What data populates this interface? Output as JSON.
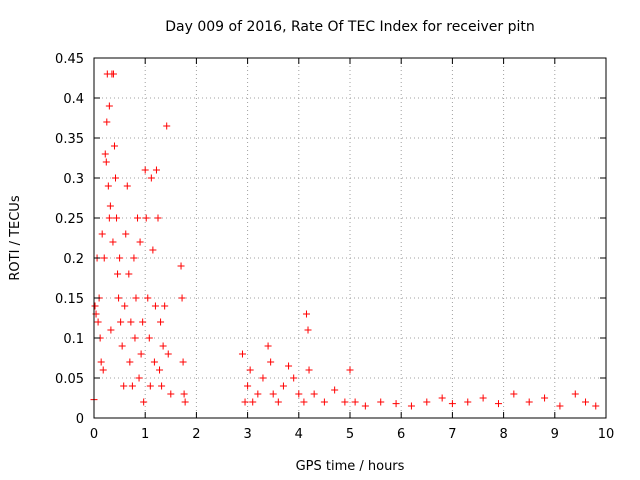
{
  "chart_data": {
    "type": "scatter",
    "title": "Day 009 of 2016, Rate Of TEC Index for receiver pitn",
    "xlabel": "GPS time / hours",
    "ylabel": "ROTI / TECUs",
    "xlim": [
      0,
      10
    ],
    "ylim": [
      0,
      0.45
    ],
    "grid": true,
    "marker": "+",
    "color": "#ff0000",
    "xticks": [
      0,
      1,
      2,
      3,
      4,
      5,
      6,
      7,
      8,
      9,
      10
    ],
    "xtick_labels": [
      "0",
      "1",
      "2",
      "3",
      "4",
      "5",
      "6",
      "7",
      "8",
      "9",
      "10"
    ],
    "yticks": [
      0,
      0.05,
      0.1,
      0.15,
      0.2,
      0.25,
      0.3,
      0.35,
      0.4,
      0.45
    ],
    "ytick_labels": [
      "0",
      "0.05",
      "0.1",
      "0.15",
      "0.2",
      "0.25",
      "0.3",
      "0.35",
      "0.4",
      "0.45"
    ],
    "series": [
      {
        "name": "ROTI",
        "points": [
          [
            0.0,
            0.023
          ],
          [
            0.02,
            0.14
          ],
          [
            0.04,
            0.13
          ],
          [
            0.06,
            0.2
          ],
          [
            0.08,
            0.12
          ],
          [
            0.1,
            0.15
          ],
          [
            0.12,
            0.1
          ],
          [
            0.14,
            0.07
          ],
          [
            0.16,
            0.23
          ],
          [
            0.18,
            0.06
          ],
          [
            0.2,
            0.2
          ],
          [
            0.22,
            0.33
          ],
          [
            0.24,
            0.32
          ],
          [
            0.25,
            0.37
          ],
          [
            0.26,
            0.43
          ],
          [
            0.28,
            0.29
          ],
          [
            0.3,
            0.25
          ],
          [
            0.3,
            0.39
          ],
          [
            0.32,
            0.265
          ],
          [
            0.33,
            0.11
          ],
          [
            0.35,
            0.43
          ],
          [
            0.37,
            0.22
          ],
          [
            0.38,
            0.43
          ],
          [
            0.4,
            0.34
          ],
          [
            0.42,
            0.3
          ],
          [
            0.44,
            0.25
          ],
          [
            0.46,
            0.18
          ],
          [
            0.48,
            0.15
          ],
          [
            0.5,
            0.2
          ],
          [
            0.52,
            0.12
          ],
          [
            0.55,
            0.09
          ],
          [
            0.58,
            0.04
          ],
          [
            0.6,
            0.14
          ],
          [
            0.62,
            0.23
          ],
          [
            0.65,
            0.29
          ],
          [
            0.68,
            0.18
          ],
          [
            0.7,
            0.07
          ],
          [
            0.72,
            0.12
          ],
          [
            0.75,
            0.04
          ],
          [
            0.78,
            0.2
          ],
          [
            0.8,
            0.1
          ],
          [
            0.82,
            0.15
          ],
          [
            0.85,
            0.25
          ],
          [
            0.88,
            0.05
          ],
          [
            0.9,
            0.22
          ],
          [
            0.92,
            0.08
          ],
          [
            0.95,
            0.12
          ],
          [
            0.97,
            0.02
          ],
          [
            1.0,
            0.31
          ],
          [
            1.02,
            0.25
          ],
          [
            1.05,
            0.15
          ],
          [
            1.08,
            0.1
          ],
          [
            1.1,
            0.04
          ],
          [
            1.12,
            0.3
          ],
          [
            1.15,
            0.21
          ],
          [
            1.18,
            0.07
          ],
          [
            1.2,
            0.14
          ],
          [
            1.22,
            0.31
          ],
          [
            1.25,
            0.25
          ],
          [
            1.28,
            0.06
          ],
          [
            1.3,
            0.12
          ],
          [
            1.32,
            0.04
          ],
          [
            1.35,
            0.09
          ],
          [
            1.38,
            0.14
          ],
          [
            1.42,
            0.365
          ],
          [
            1.45,
            0.08
          ],
          [
            1.5,
            0.03
          ],
          [
            1.7,
            0.19
          ],
          [
            1.72,
            0.15
          ],
          [
            1.74,
            0.07
          ],
          [
            1.76,
            0.03
          ],
          [
            1.78,
            0.02
          ],
          [
            2.9,
            0.08
          ],
          [
            2.95,
            0.02
          ],
          [
            3.0,
            0.04
          ],
          [
            3.05,
            0.06
          ],
          [
            3.1,
            0.02
          ],
          [
            3.2,
            0.03
          ],
          [
            3.3,
            0.05
          ],
          [
            3.4,
            0.09
          ],
          [
            3.45,
            0.07
          ],
          [
            3.5,
            0.03
          ],
          [
            3.6,
            0.02
          ],
          [
            3.7,
            0.04
          ],
          [
            3.8,
            0.065
          ],
          [
            3.9,
            0.05
          ],
          [
            4.0,
            0.03
          ],
          [
            4.1,
            0.02
          ],
          [
            4.15,
            0.13
          ],
          [
            4.18,
            0.11
          ],
          [
            4.2,
            0.06
          ],
          [
            4.3,
            0.03
          ],
          [
            4.5,
            0.02
          ],
          [
            4.7,
            0.035
          ],
          [
            4.9,
            0.02
          ],
          [
            5.0,
            0.06
          ],
          [
            5.1,
            0.02
          ],
          [
            5.3,
            0.015
          ],
          [
            5.6,
            0.02
          ],
          [
            5.9,
            0.018
          ],
          [
            6.2,
            0.015
          ],
          [
            6.5,
            0.02
          ],
          [
            6.8,
            0.025
          ],
          [
            7.0,
            0.018
          ],
          [
            7.3,
            0.02
          ],
          [
            7.6,
            0.025
          ],
          [
            7.9,
            0.018
          ],
          [
            8.2,
            0.03
          ],
          [
            8.5,
            0.02
          ],
          [
            8.8,
            0.025
          ],
          [
            9.1,
            0.015
          ],
          [
            9.4,
            0.03
          ],
          [
            9.6,
            0.02
          ],
          [
            9.8,
            0.015
          ]
        ]
      }
    ]
  }
}
